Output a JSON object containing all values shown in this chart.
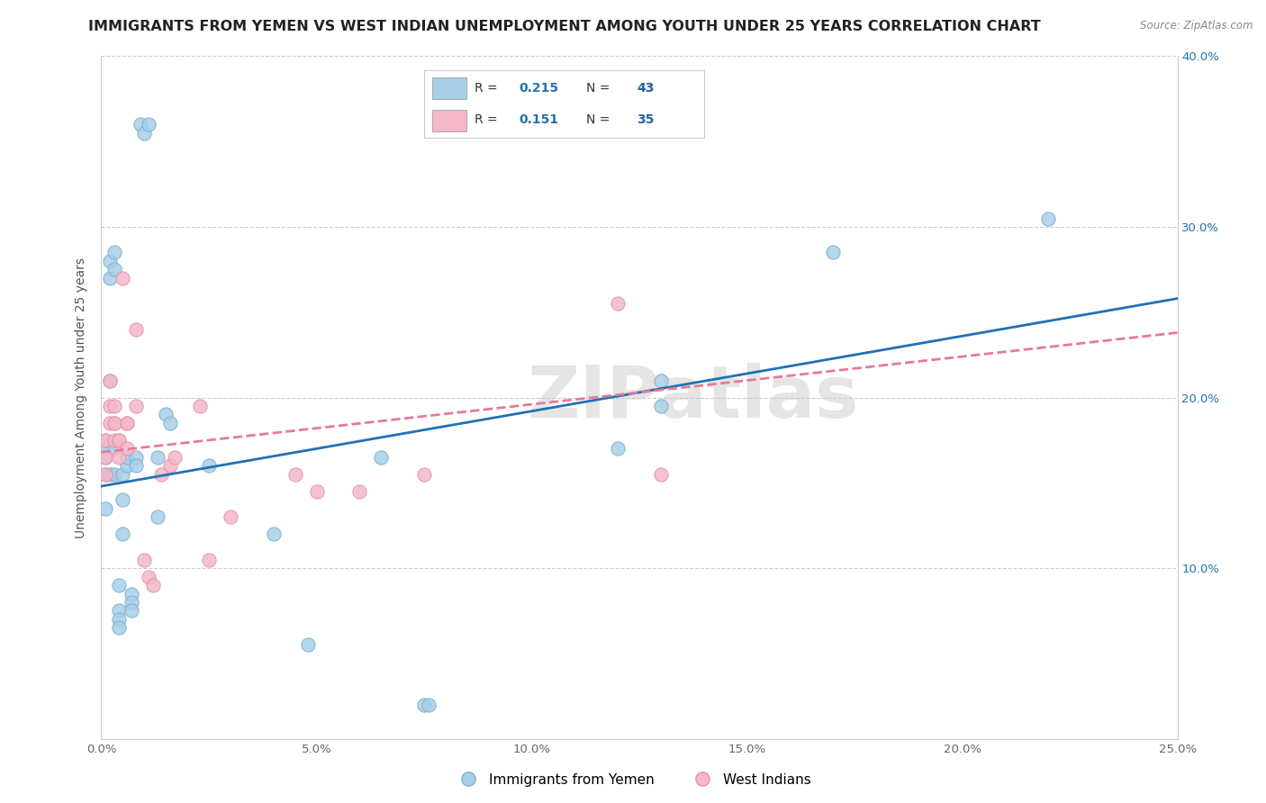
{
  "title": "IMMIGRANTS FROM YEMEN VS WEST INDIAN UNEMPLOYMENT AMONG YOUTH UNDER 25 YEARS CORRELATION CHART",
  "source": "Source: ZipAtlas.com",
  "ylabel": "Unemployment Among Youth under 25 years",
  "xlim": [
    0.0,
    0.25
  ],
  "ylim": [
    0.0,
    0.4
  ],
  "watermark": "ZIPatlas",
  "legend_bottom_label1": "Immigrants from Yemen",
  "legend_bottom_label2": "West Indians",
  "scatter_blue": [
    [
      0.001,
      0.165
    ],
    [
      0.001,
      0.155
    ],
    [
      0.001,
      0.135
    ],
    [
      0.001,
      0.17
    ],
    [
      0.002,
      0.155
    ],
    [
      0.002,
      0.21
    ],
    [
      0.002,
      0.27
    ],
    [
      0.002,
      0.28
    ],
    [
      0.003,
      0.17
    ],
    [
      0.003,
      0.155
    ],
    [
      0.003,
      0.275
    ],
    [
      0.003,
      0.285
    ],
    [
      0.004,
      0.09
    ],
    [
      0.004,
      0.075
    ],
    [
      0.004,
      0.07
    ],
    [
      0.004,
      0.065
    ],
    [
      0.005,
      0.155
    ],
    [
      0.005,
      0.12
    ],
    [
      0.005,
      0.14
    ],
    [
      0.006,
      0.16
    ],
    [
      0.006,
      0.165
    ],
    [
      0.007,
      0.085
    ],
    [
      0.007,
      0.08
    ],
    [
      0.007,
      0.075
    ],
    [
      0.008,
      0.165
    ],
    [
      0.008,
      0.16
    ],
    [
      0.009,
      0.36
    ],
    [
      0.01,
      0.355
    ],
    [
      0.011,
      0.36
    ],
    [
      0.013,
      0.13
    ],
    [
      0.013,
      0.165
    ],
    [
      0.015,
      0.19
    ],
    [
      0.016,
      0.185
    ],
    [
      0.025,
      0.16
    ],
    [
      0.04,
      0.12
    ],
    [
      0.048,
      0.055
    ],
    [
      0.065,
      0.165
    ],
    [
      0.075,
      0.02
    ],
    [
      0.076,
      0.02
    ],
    [
      0.12,
      0.17
    ],
    [
      0.13,
      0.195
    ],
    [
      0.13,
      0.21
    ],
    [
      0.17,
      0.285
    ],
    [
      0.22,
      0.305
    ]
  ],
  "scatter_pink": [
    [
      0.001,
      0.155
    ],
    [
      0.001,
      0.165
    ],
    [
      0.001,
      0.175
    ],
    [
      0.001,
      0.175
    ],
    [
      0.002,
      0.195
    ],
    [
      0.002,
      0.185
    ],
    [
      0.002,
      0.21
    ],
    [
      0.003,
      0.185
    ],
    [
      0.003,
      0.195
    ],
    [
      0.003,
      0.185
    ],
    [
      0.003,
      0.175
    ],
    [
      0.004,
      0.165
    ],
    [
      0.004,
      0.175
    ],
    [
      0.004,
      0.175
    ],
    [
      0.005,
      0.27
    ],
    [
      0.006,
      0.17
    ],
    [
      0.006,
      0.185
    ],
    [
      0.006,
      0.185
    ],
    [
      0.008,
      0.195
    ],
    [
      0.008,
      0.24
    ],
    [
      0.01,
      0.105
    ],
    [
      0.011,
      0.095
    ],
    [
      0.012,
      0.09
    ],
    [
      0.014,
      0.155
    ],
    [
      0.016,
      0.16
    ],
    [
      0.017,
      0.165
    ],
    [
      0.023,
      0.195
    ],
    [
      0.025,
      0.105
    ],
    [
      0.03,
      0.13
    ],
    [
      0.045,
      0.155
    ],
    [
      0.05,
      0.145
    ],
    [
      0.06,
      0.145
    ],
    [
      0.075,
      0.155
    ],
    [
      0.12,
      0.255
    ],
    [
      0.13,
      0.155
    ]
  ],
  "blue_line_x": [
    0.0,
    0.25
  ],
  "blue_line_y": [
    0.148,
    0.258
  ],
  "pink_line_x": [
    0.0,
    0.25
  ],
  "pink_line_y": [
    0.168,
    0.238
  ],
  "blue_color": "#a8cfe8",
  "pink_color": "#f4b8c8",
  "blue_scatter_edge": "#7ab0d4",
  "pink_scatter_edge": "#e891aa",
  "blue_line_color": "#2171b5",
  "pink_line_color": "#e8799a",
  "right_tick_color": "#2171b5",
  "title_fontsize": 11.5,
  "axis_label_fontsize": 10,
  "tick_fontsize": 9.5,
  "legend_R_color": "#2171b5",
  "legend_N_color": "#2060aa",
  "legend_text_color": "#333333"
}
